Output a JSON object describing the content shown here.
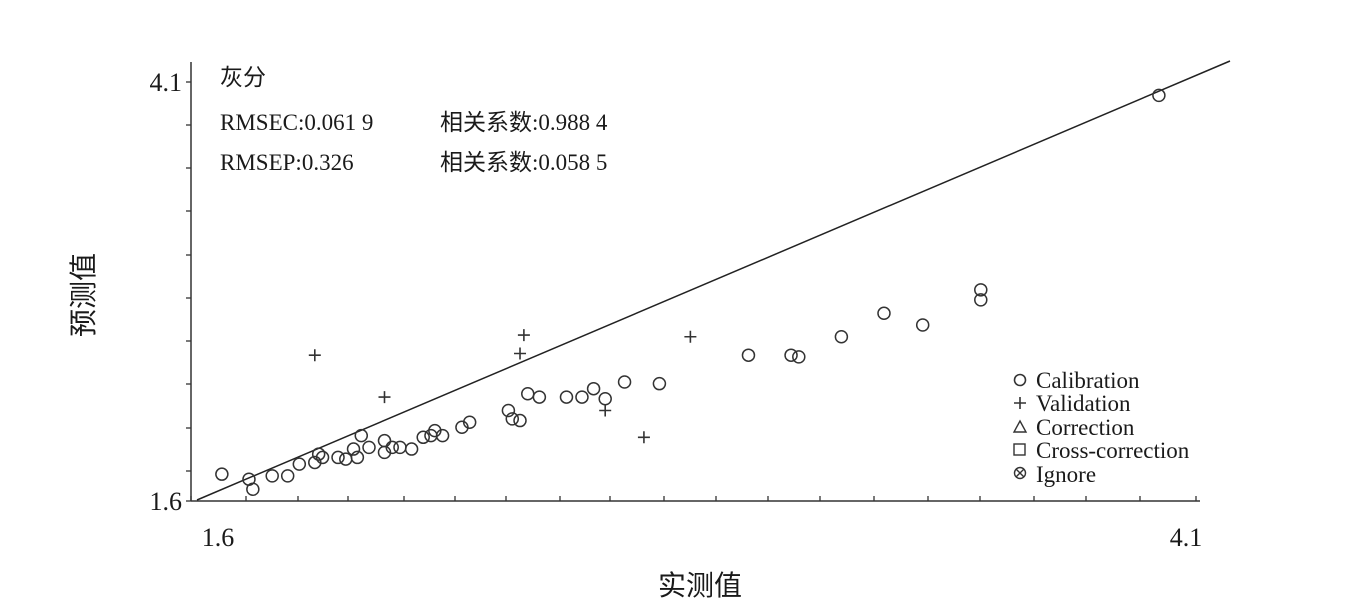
{
  "chart_data": {
    "type": "scatter",
    "title": "灰分",
    "xlabel": "实测值",
    "ylabel": "预测值",
    "xlim": [
      1.6,
      4.1
    ],
    "ylim": [
      1.6,
      4.1
    ],
    "x_tick_labels": [
      "1.6",
      "4.1"
    ],
    "y_tick_labels": [
      "4.1",
      "1.6"
    ],
    "annotations": [
      [
        "RMSEC:0.061 9",
        "相关系数:0.988 4"
      ],
      [
        "RMSEP:0.326",
        "相关系数:0.058 5"
      ]
    ],
    "fit_line": {
      "x": [
        1.6,
        4.1
      ],
      "y": [
        1.6,
        4.1
      ]
    },
    "legend_position": "bottom-right",
    "grid": false,
    "series": [
      {
        "name": "Calibration",
        "marker": "circle",
        "points": [
          [
            1.61,
            1.76
          ],
          [
            1.68,
            1.73
          ],
          [
            1.69,
            1.67
          ],
          [
            1.74,
            1.75
          ],
          [
            1.78,
            1.75
          ],
          [
            1.81,
            1.82
          ],
          [
            1.85,
            1.83
          ],
          [
            1.86,
            1.88
          ],
          [
            1.87,
            1.86
          ],
          [
            1.91,
            1.86
          ],
          [
            1.93,
            1.85
          ],
          [
            1.95,
            1.91
          ],
          [
            1.96,
            1.86
          ],
          [
            1.97,
            1.99
          ],
          [
            1.99,
            1.92
          ],
          [
            2.03,
            1.89
          ],
          [
            2.03,
            1.96
          ],
          [
            2.05,
            1.92
          ],
          [
            2.07,
            1.92
          ],
          [
            2.1,
            1.91
          ],
          [
            2.13,
            1.98
          ],
          [
            2.15,
            1.99
          ],
          [
            2.16,
            2.02
          ],
          [
            2.18,
            1.99
          ],
          [
            2.23,
            2.04
          ],
          [
            2.25,
            2.07
          ],
          [
            2.35,
            2.14
          ],
          [
            2.36,
            2.09
          ],
          [
            2.38,
            2.08
          ],
          [
            2.4,
            2.24
          ],
          [
            2.43,
            2.22
          ],
          [
            2.5,
            2.22
          ],
          [
            2.54,
            2.22
          ],
          [
            2.57,
            2.27
          ],
          [
            2.6,
            2.21
          ],
          [
            2.65,
            2.31
          ],
          [
            2.74,
            2.3
          ],
          [
            2.97,
            2.47
          ],
          [
            3.08,
            2.47
          ],
          [
            3.1,
            2.46
          ],
          [
            3.21,
            2.58
          ],
          [
            3.32,
            2.72
          ],
          [
            3.42,
            2.65
          ],
          [
            3.57,
            2.8
          ],
          [
            3.57,
            2.86
          ],
          [
            4.03,
            4.02
          ]
        ]
      },
      {
        "name": "Validation",
        "marker": "plus",
        "points": [
          [
            1.85,
            2.47
          ],
          [
            2.03,
            2.22
          ],
          [
            2.38,
            2.48
          ],
          [
            2.39,
            2.59
          ],
          [
            2.6,
            2.14
          ],
          [
            2.7,
            1.98
          ],
          [
            2.82,
            2.58
          ]
        ]
      },
      {
        "name": "Correction",
        "marker": "triangle",
        "points": []
      },
      {
        "name": "Cross-correction",
        "marker": "square",
        "points": []
      },
      {
        "name": "Ignore",
        "marker": "crossed-circle",
        "points": []
      }
    ]
  }
}
